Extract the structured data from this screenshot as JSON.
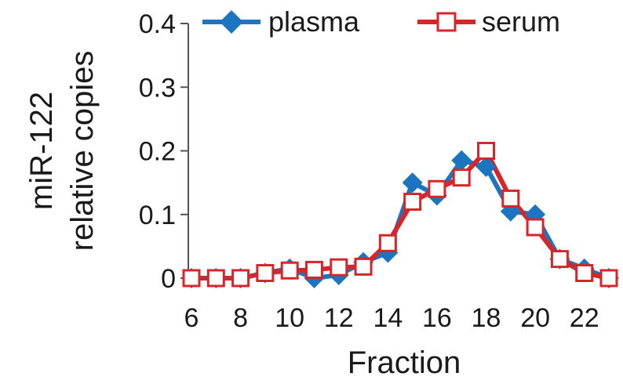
{
  "chart_data": {
    "type": "line",
    "xlabel": "Fraction",
    "ylabel_lines": [
      "miR-122",
      "relative copies"
    ],
    "xlim": [
      6,
      23
    ],
    "ylim": [
      0,
      0.4
    ],
    "x_ticks": [
      6,
      8,
      10,
      12,
      14,
      16,
      18,
      20,
      22
    ],
    "y_ticks": [
      {
        "value": 0,
        "label": "0"
      },
      {
        "value": 0.1,
        "label": "0.1"
      },
      {
        "value": 0.2,
        "label": "0.2"
      },
      {
        "value": 0.3,
        "label": "0.3"
      },
      {
        "value": 0.4,
        "label": "0.4"
      }
    ],
    "legend_position": "top",
    "series": [
      {
        "name": "plasma",
        "color": "#1b75c0",
        "marker": "diamond-filled",
        "x": [
          6,
          7,
          8,
          9,
          10,
          11,
          12,
          13,
          14,
          15,
          16,
          17,
          18,
          19,
          20,
          21,
          22,
          23
        ],
        "y": [
          0.0,
          0.0,
          0.0,
          0.008,
          0.015,
          0.0,
          0.005,
          0.025,
          0.04,
          0.15,
          0.13,
          0.185,
          0.175,
          0.105,
          0.1,
          0.03,
          0.015,
          0.0
        ]
      },
      {
        "name": "serum",
        "color": "#d7262a",
        "marker": "square-open",
        "x": [
          6,
          7,
          8,
          9,
          10,
          11,
          12,
          13,
          14,
          15,
          16,
          17,
          18,
          19,
          20,
          21,
          22,
          23
        ],
        "y": [
          0.0,
          0.0,
          0.0,
          0.008,
          0.012,
          0.013,
          0.017,
          0.018,
          0.055,
          0.12,
          0.14,
          0.158,
          0.2,
          0.125,
          0.08,
          0.03,
          0.008,
          0.0
        ]
      }
    ]
  }
}
